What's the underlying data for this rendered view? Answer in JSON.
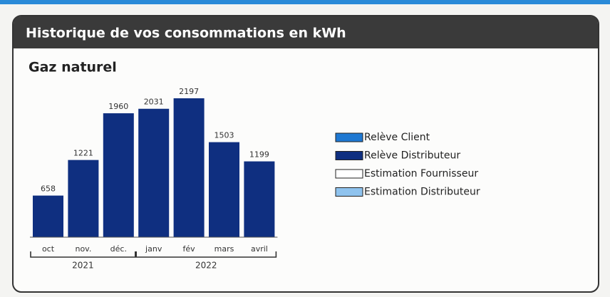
{
  "chart_data": {
    "type": "bar",
    "title": "Historique de vos consommations en kWh",
    "subtitle": "Gaz naturel",
    "categories": [
      "oct",
      "nov.",
      "déc.",
      "janv",
      "fév",
      "mars",
      "avril"
    ],
    "years": [
      "2021",
      "2021",
      "2021",
      "2022",
      "2022",
      "2022",
      "2022"
    ],
    "series": [
      {
        "name": "Relève Client",
        "color": "#1e78d2",
        "values": [
          null,
          null,
          null,
          null,
          null,
          null,
          null
        ]
      },
      {
        "name": "Relève Distributeur",
        "color": "#0f2f80",
        "values": [
          658,
          1221,
          1960,
          2031,
          2197,
          1503,
          1199
        ]
      },
      {
        "name": "Estimation Fournisseur",
        "color": "#ffffff",
        "values": [
          null,
          null,
          null,
          null,
          null,
          null,
          null
        ]
      },
      {
        "name": "Estimation Distributeur",
        "color": "#8fc3ee",
        "values": [
          null,
          null,
          null,
          null,
          null,
          null,
          null
        ]
      }
    ]
  }
}
